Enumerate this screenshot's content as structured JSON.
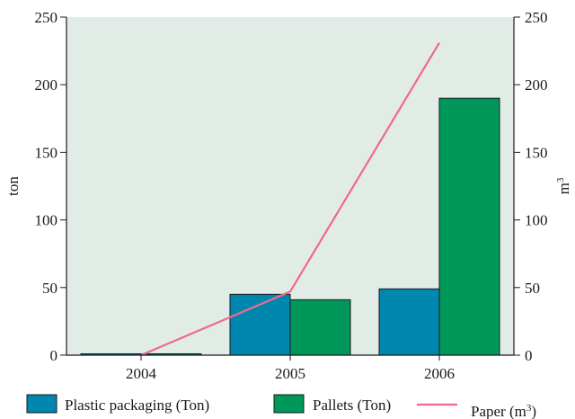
{
  "colors": {
    "plot_bg": "#e2ece7",
    "plastic": "#0087b0",
    "pallets": "#00975a",
    "paper": "#ee6a8b",
    "axis": "#1a1a1a"
  },
  "chart_data": {
    "type": "bar",
    "categories": [
      "2004",
      "2005",
      "2006"
    ],
    "series": [
      {
        "name": "Plastic packaging (Ton)",
        "type": "bar",
        "axis": "left",
        "values": [
          1,
          45,
          49
        ]
      },
      {
        "name": "Pallets (Ton)",
        "type": "bar",
        "axis": "left",
        "values": [
          1,
          41,
          190
        ]
      },
      {
        "name": "Paper (m3)",
        "type": "line",
        "axis": "right",
        "values": [
          0,
          47,
          231
        ]
      }
    ],
    "ylabel": "ton",
    "y2label_base": "m",
    "y2label_sup": "3",
    "ylim": [
      0,
      250
    ],
    "y2lim": [
      0,
      250
    ],
    "yticks": [
      0,
      50,
      100,
      150,
      200,
      250
    ],
    "y2ticks": [
      0,
      50,
      100,
      150,
      200,
      250
    ],
    "grid": false,
    "legend": {
      "position": "bottom",
      "items": [
        {
          "label": "Plastic packaging (Ton)",
          "kind": "box",
          "color_key": "plastic"
        },
        {
          "label": "Pallets (Ton)",
          "kind": "box",
          "color_key": "pallets"
        },
        {
          "label_base": "Paper (m",
          "label_sup": "3",
          "label_end": ")",
          "kind": "line",
          "color_key": "paper"
        }
      ]
    }
  }
}
